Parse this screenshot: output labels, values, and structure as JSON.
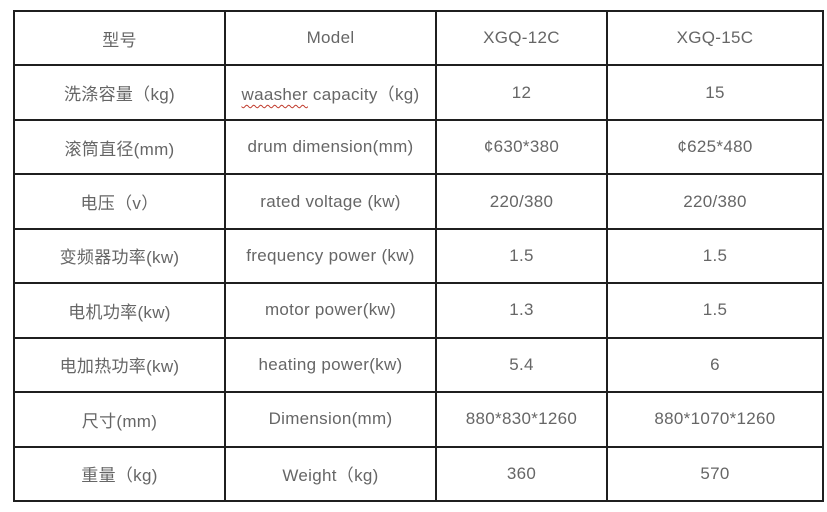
{
  "page": {
    "background": "#ffffff"
  },
  "table": {
    "border_color": "#1f1f1f",
    "text_color": "#666666",
    "spell_error_color": "#c0392b",
    "rows": [
      {
        "cells": [
          "型号",
          "Model",
          "XGQ-12C",
          "XGQ-15C"
        ]
      },
      {
        "cells": [
          "洗涤容量（kg)",
          "waasher capacity（kg)",
          "12",
          "15"
        ]
      },
      {
        "cells": [
          "滚筒直径(mm)",
          "drum dimension(mm)",
          "¢630*380",
          "¢625*480"
        ]
      },
      {
        "cells": [
          "电压（v）",
          "rated voltage (kw)",
          "220/380",
          "220/380"
        ]
      },
      {
        "cells": [
          "变频器功率(kw)",
          "frequency power (kw)",
          "1.5",
          "1.5"
        ]
      },
      {
        "cells": [
          "电机功率(kw)",
          "motor power(kw)",
          "1.3",
          "1.5"
        ]
      },
      {
        "cells": [
          "电加热功率(kw)",
          "heating power(kw)",
          "5.4",
          "6"
        ]
      },
      {
        "cells": [
          "尺寸(mm)",
          "Dimension(mm)",
          "880*830*1260",
          "880*1070*1260"
        ]
      },
      {
        "cells": [
          "重量（kg)",
          "Weight（kg)",
          "360",
          "570"
        ]
      }
    ],
    "spellcheck": {
      "row": 1,
      "col": 1,
      "word": "waasher"
    }
  }
}
